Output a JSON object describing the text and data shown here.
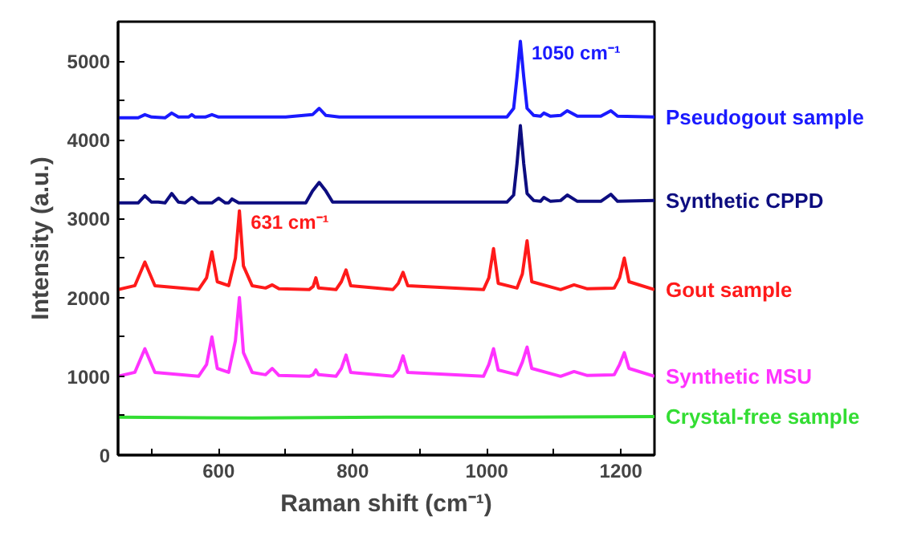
{
  "chart_data": {
    "type": "line",
    "xlabel": "Raman shift (cm⁻¹)",
    "ylabel": "Intensity (a.u.)",
    "xlim": [
      450,
      1250
    ],
    "ylim": [
      0,
      5500
    ],
    "xticks": [
      {
        "value": 500,
        "label": null
      },
      600,
      {
        "value": 700,
        "label": null
      },
      800,
      {
        "value": 900,
        "label": null
      },
      1000,
      {
        "value": 1100,
        "label": null
      },
      1200
    ],
    "yticks": [
      0,
      {
        "value": 500,
        "label": null
      },
      1000,
      {
        "value": 1500,
        "label": null
      },
      2000,
      {
        "value": 2500,
        "label": null
      },
      3000,
      {
        "value": 3500,
        "label": null
      },
      4000,
      {
        "value": 4500,
        "label": null
      },
      5000
    ],
    "grid": false,
    "annotations": [
      {
        "text": "631 cm⁻¹",
        "x": 631,
        "y": 3100
      },
      {
        "text": "1050 cm⁻¹",
        "x": 1050,
        "y": 5250
      }
    ],
    "series": [
      {
        "name": "Pseudogout sample",
        "color": "#1a1aff",
        "x": [
          450,
          480,
          490,
          500,
          520,
          530,
          540,
          555,
          560,
          565,
          580,
          590,
          600,
          700,
          740,
          750,
          760,
          780,
          1030,
          1040,
          1045,
          1050,
          1055,
          1060,
          1070,
          1080,
          1085,
          1095,
          1110,
          1120,
          1135,
          1170,
          1185,
          1195,
          1250
        ],
        "values": [
          4280,
          4280,
          4320,
          4290,
          4280,
          4340,
          4290,
          4290,
          4320,
          4290,
          4290,
          4320,
          4290,
          4290,
          4320,
          4400,
          4310,
          4290,
          4290,
          4400,
          4800,
          5250,
          4800,
          4400,
          4310,
          4300,
          4340,
          4300,
          4310,
          4370,
          4300,
          4300,
          4370,
          4300,
          4290
        ]
      },
      {
        "name": "Synthetic CPPD",
        "color": "#0d0d80",
        "x": [
          450,
          480,
          490,
          500,
          510,
          520,
          530,
          540,
          550,
          560,
          570,
          590,
          600,
          610,
          615,
          620,
          630,
          730,
          740,
          750,
          760,
          770,
          1030,
          1040,
          1045,
          1050,
          1055,
          1060,
          1070,
          1080,
          1085,
          1095,
          1110,
          1120,
          1135,
          1170,
          1185,
          1195,
          1250
        ],
        "values": [
          3200,
          3200,
          3290,
          3210,
          3210,
          3200,
          3320,
          3210,
          3200,
          3270,
          3200,
          3200,
          3260,
          3200,
          3200,
          3250,
          3200,
          3200,
          3350,
          3460,
          3350,
          3210,
          3210,
          3300,
          3700,
          4180,
          3700,
          3320,
          3230,
          3220,
          3270,
          3220,
          3230,
          3300,
          3220,
          3220,
          3310,
          3220,
          3230
        ]
      },
      {
        "name": "Gout sample",
        "color": "#ff1a1a",
        "x": [
          450,
          475,
          490,
          505,
          570,
          582,
          590,
          598,
          615,
          625,
          631,
          637,
          650,
          670,
          680,
          690,
          735,
          741,
          745,
          749,
          775,
          783,
          790,
          797,
          860,
          868,
          875,
          882,
          995,
          1003,
          1010,
          1017,
          1045,
          1053,
          1060,
          1067,
          1110,
          1130,
          1150,
          1190,
          1198,
          1205,
          1212,
          1250
        ],
        "values": [
          2100,
          2150,
          2450,
          2150,
          2100,
          2250,
          2580,
          2200,
          2150,
          2500,
          3100,
          2400,
          2150,
          2120,
          2160,
          2110,
          2100,
          2140,
          2250,
          2120,
          2100,
          2200,
          2350,
          2150,
          2100,
          2180,
          2320,
          2150,
          2100,
          2250,
          2620,
          2180,
          2120,
          2300,
          2720,
          2200,
          2100,
          2160,
          2110,
          2120,
          2250,
          2500,
          2200,
          2100
        ]
      },
      {
        "name": "Synthetic MSU",
        "color": "#ff33ff",
        "x": [
          450,
          475,
          490,
          505,
          570,
          582,
          590,
          598,
          615,
          625,
          631,
          637,
          650,
          670,
          680,
          690,
          735,
          741,
          745,
          749,
          775,
          783,
          790,
          797,
          860,
          868,
          875,
          882,
          995,
          1003,
          1010,
          1017,
          1045,
          1053,
          1060,
          1067,
          1110,
          1130,
          1150,
          1190,
          1198,
          1205,
          1212,
          1250
        ],
        "values": [
          1000,
          1050,
          1350,
          1050,
          1000,
          1150,
          1500,
          1100,
          1050,
          1450,
          2000,
          1300,
          1050,
          1020,
          1100,
          1010,
          1000,
          1020,
          1080,
          1020,
          1000,
          1100,
          1270,
          1050,
          1000,
          1080,
          1260,
          1050,
          1000,
          1150,
          1350,
          1080,
          1020,
          1180,
          1370,
          1100,
          1000,
          1060,
          1010,
          1020,
          1150,
          1300,
          1100,
          1000
        ]
      },
      {
        "name": "Crystal-free sample",
        "color": "#33dd33",
        "x": [
          450,
          650,
          850,
          1050,
          1250
        ],
        "values": [
          480,
          470,
          480,
          480,
          490
        ]
      }
    ]
  }
}
